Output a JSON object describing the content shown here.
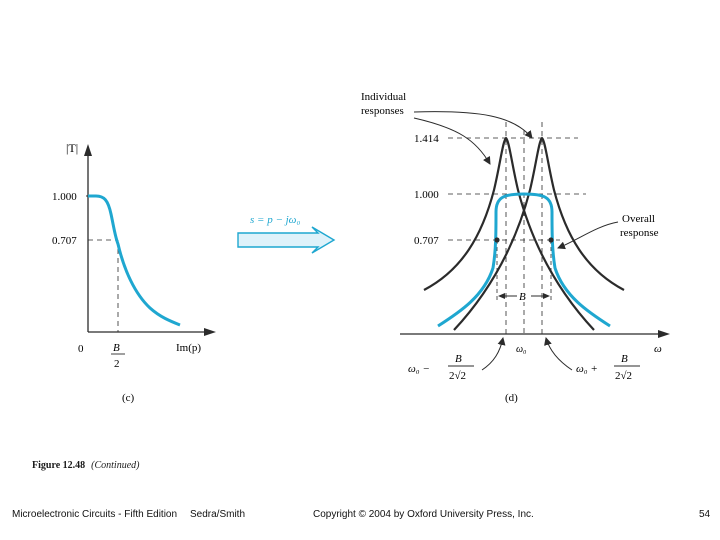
{
  "colors": {
    "ink": "#2b2b2b",
    "accent": "#1fa7d0",
    "arrow_fill": "#dff2fa"
  },
  "panel_c": {
    "y_axis_label": "|T|",
    "tick_1000": "1.000",
    "tick_0707": "0.707",
    "origin": "0",
    "b_num": "B",
    "b_den": "2",
    "x_axis_label": "Im(p)",
    "label": "(c)"
  },
  "transform": {
    "equation": "s = p − jω₀"
  },
  "panel_d": {
    "individual_line1": "Individual",
    "individual_line2": "responses",
    "tick_1414": "1.414",
    "tick_1000": "1.000",
    "tick_0707": "0.707",
    "overall_line1": "Overall",
    "overall_line2": "response",
    "bandwidth": "B",
    "omega0_axis": "ω₀",
    "x_axis_label": "ω",
    "left_expr_head": "ω₀ −",
    "right_expr_head": "ω₀ +",
    "frac_num": "B",
    "frac_den": "2√2",
    "label": "(d)"
  },
  "caption": {
    "figure_number": "Figure 12.48",
    "note": "(Continued)"
  },
  "footer": {
    "book": "Microelectronic Circuits - Fifth Edition",
    "authors": "Sedra/Smith",
    "copyright": "Copyright © 2004 by Oxford University Press, Inc.",
    "page": "54"
  }
}
